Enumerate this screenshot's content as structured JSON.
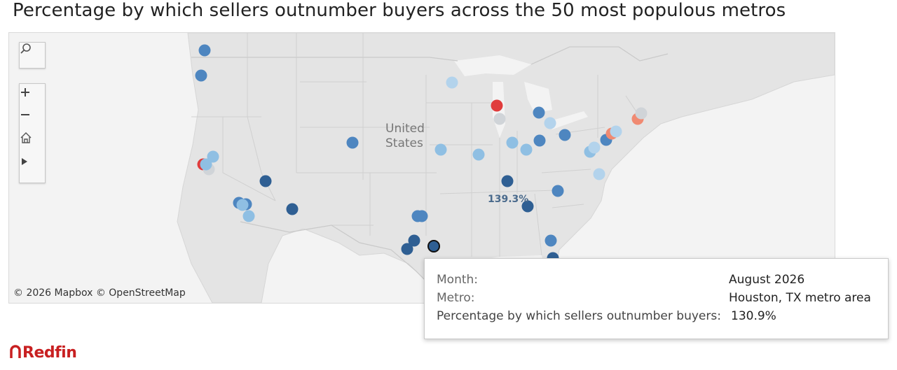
{
  "title": "Percentage by which sellers outnumber buyers across the 50 most populous metros",
  "map": {
    "country_label_line1": "United",
    "country_label_line2": "States",
    "attribution": "© 2026 Mapbox  © OpenStreetMap",
    "highlight_label": "139.3%",
    "toolbar": {
      "search_icon": "search-icon",
      "zoom_in_icon": "plus-icon",
      "zoom_out_icon": "minus-icon",
      "home_icon": "home-icon",
      "play_icon": "play-icon"
    }
  },
  "tooltip": {
    "month_label": "Month:",
    "month_value": "August 2026",
    "metro_label": "Metro:",
    "metro_value": "Houston, TX metro area",
    "pct_label": "Percentage by which sellers outnumber buyers:",
    "pct_value": "130.9%"
  },
  "colors": {
    "dark_blue": "#2f5f93",
    "mid_blue": "#4e86c0",
    "light_blue": "#8fbfe3",
    "pale_blue": "#b3d3ec",
    "gray": "#d0d4d8",
    "salmon": "#f08a72",
    "red": "#e03c3c"
  },
  "logo": "Redfin"
}
